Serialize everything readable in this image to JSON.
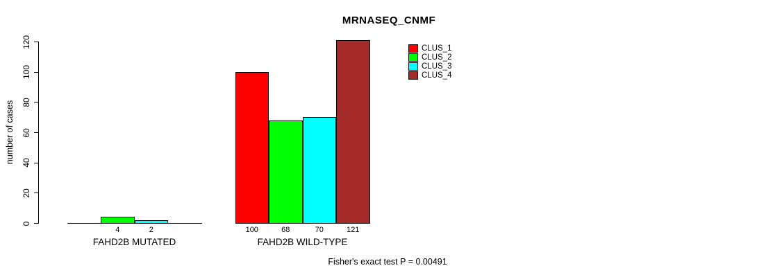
{
  "chart_data": {
    "type": "bar",
    "title": "MRNASEQ_CNMF",
    "ylabel": "number of cases",
    "xlabel": "",
    "ylim": [
      0,
      120
    ],
    "yticks": [
      0,
      20,
      40,
      60,
      80,
      100,
      120
    ],
    "grid": false,
    "legend_position": "top-right",
    "categories": [
      "FAHD2B MUTATED",
      "FAHD2B WILD-TYPE"
    ],
    "series": [
      {
        "name": "CLUS_1",
        "color": "#FF0000",
        "values": [
          0,
          100
        ]
      },
      {
        "name": "CLUS_2",
        "color": "#00FF00",
        "values": [
          4,
          68
        ]
      },
      {
        "name": "CLUS_3",
        "color": "#00FFFF",
        "values": [
          2,
          70
        ]
      },
      {
        "name": "CLUS_4",
        "color": "#A52A2A",
        "values": [
          0,
          121
        ]
      }
    ],
    "bar_value_labels": "shown under each nonzero bar",
    "annotation": "Fisher's exact test P = 0.00491"
  }
}
